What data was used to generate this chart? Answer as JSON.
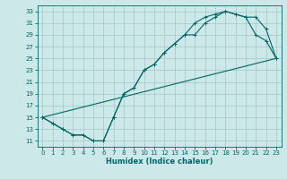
{
  "xlabel": "Humidex (Indice chaleur)",
  "bg_color": "#cce8e8",
  "grid_color": "#aacccc",
  "line_color": "#006666",
  "xlim": [
    -0.5,
    23.5
  ],
  "ylim": [
    10,
    34
  ],
  "yticks": [
    11,
    13,
    15,
    17,
    19,
    21,
    23,
    25,
    27,
    29,
    31,
    33
  ],
  "xticks": [
    0,
    1,
    2,
    3,
    4,
    5,
    6,
    7,
    8,
    9,
    10,
    11,
    12,
    13,
    14,
    15,
    16,
    17,
    18,
    19,
    20,
    21,
    22,
    23
  ],
  "line1_x": [
    0,
    1,
    2,
    3,
    4,
    5,
    6,
    7,
    8,
    9,
    10,
    11,
    12,
    13,
    14,
    15,
    16,
    17,
    18,
    19,
    20,
    21,
    22,
    23
  ],
  "line1_y": [
    15,
    14,
    13,
    12,
    12,
    11,
    11,
    15,
    19,
    20,
    23,
    24,
    26,
    27.5,
    29,
    31,
    32,
    32.5,
    33,
    32.5,
    32,
    29,
    28,
    25
  ],
  "line2_x": [
    0,
    1,
    2,
    3,
    4,
    5,
    6,
    7,
    8,
    9,
    10,
    11,
    12,
    13,
    14,
    15,
    16,
    17,
    18,
    19,
    20,
    21,
    22,
    23
  ],
  "line2_y": [
    15,
    14,
    13,
    12,
    12,
    11,
    11,
    15,
    19,
    20,
    23,
    24,
    26,
    27.5,
    29,
    29,
    31,
    32,
    33,
    32.5,
    32,
    32,
    30,
    25
  ],
  "line3_x": [
    0,
    23
  ],
  "line3_y": [
    15,
    25
  ]
}
